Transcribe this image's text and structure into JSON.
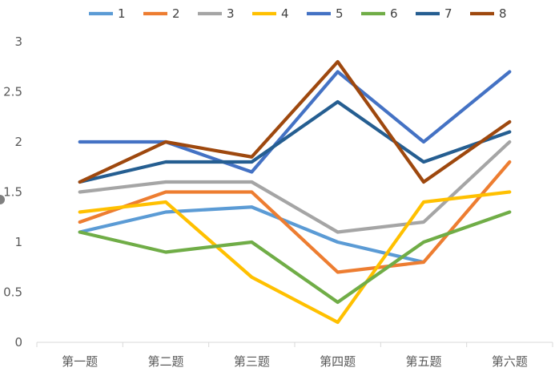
{
  "chart_data": {
    "type": "line",
    "categories": [
      "第一题",
      "第二题",
      "第三题",
      "第四题",
      "第五题",
      "第六题"
    ],
    "ylim": [
      0,
      3
    ],
    "yticks": [
      "0",
      "0.5",
      "1",
      "1.5",
      "2",
      "2.5",
      "3"
    ],
    "grid": false,
    "legend_position": "top",
    "series": [
      {
        "name": "1",
        "color": "#5B9BD5",
        "values": [
          1.1,
          1.3,
          1.35,
          1.0,
          0.8,
          null
        ]
      },
      {
        "name": "2",
        "color": "#ED7D31",
        "values": [
          1.2,
          1.5,
          1.5,
          0.7,
          0.8,
          1.8
        ]
      },
      {
        "name": "3",
        "color": "#A5A5A5",
        "values": [
          1.5,
          1.6,
          1.6,
          1.1,
          1.2,
          2.0
        ]
      },
      {
        "name": "4",
        "color": "#FFC000",
        "values": [
          1.3,
          1.4,
          0.65,
          0.2,
          1.4,
          1.5
        ]
      },
      {
        "name": "5",
        "color": "#4472C4",
        "values": [
          2.0,
          2.0,
          1.7,
          2.7,
          2.0,
          2.7
        ]
      },
      {
        "name": "6",
        "color": "#70AD47",
        "values": [
          1.1,
          0.9,
          1.0,
          0.4,
          1.0,
          1.3
        ]
      },
      {
        "name": "7",
        "color": "#255E91",
        "values": [
          1.6,
          1.8,
          1.8,
          2.4,
          1.8,
          2.1
        ]
      },
      {
        "name": "8",
        "color": "#9E480E",
        "values": [
          1.6,
          2.0,
          1.85,
          2.8,
          1.6,
          2.2
        ]
      }
    ]
  }
}
